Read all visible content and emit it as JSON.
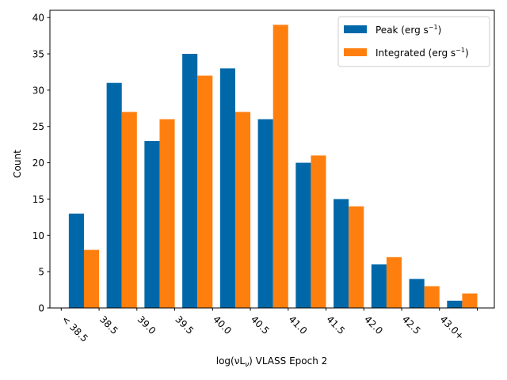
{
  "chart_data": {
    "type": "bar",
    "title": "",
    "xlabel": "log(νL",
    "xlabel_sub": "ν",
    "xlabel_suffix": ") VLASS Epoch 2",
    "ylabel": "Count",
    "ylim": [
      0,
      41
    ],
    "yticks": [
      0,
      5,
      10,
      15,
      20,
      25,
      30,
      35,
      40
    ],
    "xtick_labels": [
      "< 38.5",
      "38.5",
      "39.0",
      "39.5",
      "40.0",
      "40.5",
      "41.0",
      "41.5",
      "42.0",
      "42.5",
      "43.0+",
      ""
    ],
    "bins": 11,
    "series": [
      {
        "name": "Peak",
        "legend_base": "Peak (erg s",
        "legend_sup": "−1",
        "legend_end": ")",
        "color": "#0068a8",
        "values": [
          13,
          31,
          23,
          35,
          33,
          26,
          20,
          15,
          6,
          4,
          1
        ]
      },
      {
        "name": "Integrated",
        "legend_base": "Integrated (erg s",
        "legend_sup": "−1",
        "legend_end": ")",
        "color": "#ff7f0e",
        "values": [
          8,
          27,
          26,
          32,
          27,
          39,
          21,
          14,
          7,
          3,
          2
        ]
      }
    ],
    "legend_position": "top-right"
  }
}
